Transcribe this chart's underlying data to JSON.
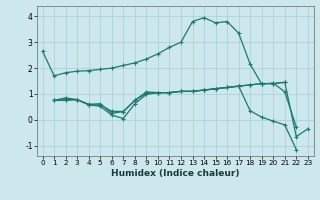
{
  "xlabel": "Humidex (Indice chaleur)",
  "bg_color": "#cce8ec",
  "grid_color": "#aaccd4",
  "line_color": "#1a7a6e",
  "xlim": [
    -0.5,
    23.5
  ],
  "ylim": [
    -1.4,
    4.4
  ],
  "xticks": [
    0,
    1,
    2,
    3,
    4,
    5,
    6,
    7,
    8,
    9,
    10,
    11,
    12,
    13,
    14,
    15,
    16,
    17,
    18,
    19,
    20,
    21,
    22,
    23
  ],
  "yticks": [
    -1,
    0,
    1,
    2,
    3,
    4
  ],
  "series": [
    {
      "x": [
        0,
        1,
        2,
        3,
        4,
        5,
        6,
        7,
        8,
        9,
        10,
        11,
        12,
        13,
        14,
        15,
        16,
        17,
        18,
        19,
        20,
        21,
        22
      ],
      "y": [
        2.65,
        1.7,
        1.82,
        1.88,
        1.9,
        1.95,
        2.0,
        2.1,
        2.2,
        2.35,
        2.55,
        2.8,
        3.0,
        3.8,
        3.95,
        3.75,
        3.8,
        3.35,
        2.15,
        1.38,
        1.42,
        1.08,
        -0.28
      ]
    },
    {
      "x": [
        1,
        2,
        3,
        4,
        5,
        6,
        7,
        8,
        9,
        10,
        11,
        12,
        13,
        14,
        15,
        16,
        17,
        18,
        19,
        20,
        21
      ],
      "y": [
        0.75,
        0.75,
        0.78,
        0.6,
        0.62,
        0.25,
        0.32,
        0.75,
        1.08,
        1.05,
        1.05,
        1.1,
        1.1,
        1.15,
        1.2,
        1.25,
        1.3,
        1.35,
        1.4,
        1.4,
        1.45
      ]
    },
    {
      "x": [
        1,
        2,
        3,
        4,
        5,
        6,
        7,
        8,
        9,
        10,
        11,
        12,
        13,
        14,
        15,
        16,
        17,
        18,
        19,
        20,
        21,
        22,
        23
      ],
      "y": [
        0.75,
        0.85,
        0.78,
        0.58,
        0.52,
        0.18,
        0.05,
        0.62,
        0.98,
        1.05,
        1.05,
        1.1,
        1.1,
        1.15,
        1.2,
        1.25,
        1.3,
        1.35,
        1.4,
        1.4,
        1.45,
        -0.65,
        -0.35
      ]
    },
    {
      "x": [
        1,
        2,
        3,
        4,
        5,
        6,
        7,
        8,
        9,
        10,
        11,
        12,
        13,
        14,
        15,
        16,
        17,
        18,
        19,
        20,
        21,
        22
      ],
      "y": [
        0.75,
        0.78,
        0.78,
        0.58,
        0.58,
        0.33,
        0.32,
        0.75,
        1.02,
        1.05,
        1.05,
        1.1,
        1.1,
        1.15,
        1.2,
        1.25,
        1.3,
        0.35,
        0.1,
        -0.05,
        -0.2,
        -1.15
      ]
    }
  ]
}
